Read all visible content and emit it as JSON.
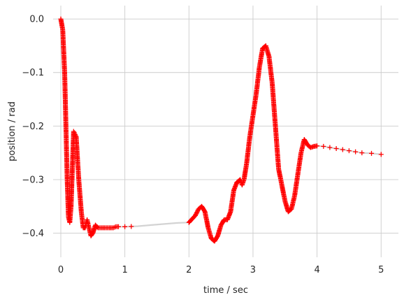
{
  "chart_data": {
    "type": "scatter",
    "title": "",
    "xlabel": "time / sec",
    "ylabel": "position / rad",
    "xlim": [
      -0.12,
      5.27
    ],
    "ylim": [
      -0.445,
      0.025
    ],
    "xticks": [
      0,
      1,
      2,
      3,
      4,
      5
    ],
    "yticks": [
      0.0,
      -0.1,
      -0.2,
      -0.3,
      -0.4
    ],
    "xtick_labels": [
      "0",
      "1",
      "2",
      "3",
      "4",
      "5"
    ],
    "ytick_labels": [
      "0.0",
      "−0.1",
      "−0.2",
      "−0.3",
      "−0.4"
    ],
    "grid": true,
    "legend": "none",
    "series": [
      {
        "marker": "+",
        "color": "#ff0000",
        "line_color": "#d3d3d3",
        "x": [
          0.0,
          0.03,
          0.06,
          0.08,
          0.1,
          0.12,
          0.14,
          0.16,
          0.18,
          0.2,
          0.24,
          0.28,
          0.32,
          0.35,
          0.38,
          0.41,
          0.44,
          0.47,
          0.5,
          0.54,
          0.58,
          0.62,
          0.66,
          0.7,
          0.74,
          0.78,
          0.82,
          0.86,
          0.9,
          0.95,
          1.0,
          1.2,
          1.4,
          1.6,
          1.8,
          2.0,
          2.1,
          2.15,
          2.2,
          2.25,
          2.3,
          2.35,
          2.4,
          2.45,
          2.5,
          2.55,
          2.6,
          2.65,
          2.7,
          2.75,
          2.8,
          2.83,
          2.86,
          2.9,
          2.95,
          3.0,
          3.05,
          3.1,
          3.15,
          3.2,
          3.25,
          3.3,
          3.35,
          3.4,
          3.45,
          3.5,
          3.55,
          3.6,
          3.65,
          3.7,
          3.75,
          3.8,
          3.85,
          3.9,
          3.95,
          4.0,
          4.1,
          4.2,
          4.3,
          4.4,
          4.5,
          4.6,
          4.7,
          4.85,
          5.0
        ],
        "y": [
          0.0,
          -0.02,
          -0.1,
          -0.2,
          -0.3,
          -0.37,
          -0.38,
          -0.35,
          -0.28,
          -0.21,
          -0.22,
          -0.3,
          -0.36,
          -0.39,
          -0.39,
          -0.375,
          -0.39,
          -0.405,
          -0.4,
          -0.385,
          -0.39,
          -0.39,
          -0.39,
          -0.39,
          -0.39,
          -0.39,
          -0.39,
          -0.388,
          -0.388,
          -0.388,
          -0.388,
          -0.387,
          -0.385,
          -0.383,
          -0.381,
          -0.38,
          -0.367,
          -0.355,
          -0.35,
          -0.36,
          -0.39,
          -0.41,
          -0.415,
          -0.405,
          -0.385,
          -0.375,
          -0.375,
          -0.36,
          -0.32,
          -0.305,
          -0.3,
          -0.31,
          -0.3,
          -0.27,
          -0.22,
          -0.18,
          -0.14,
          -0.09,
          -0.055,
          -0.05,
          -0.07,
          -0.12,
          -0.2,
          -0.28,
          -0.31,
          -0.34,
          -0.36,
          -0.355,
          -0.33,
          -0.29,
          -0.25,
          -0.225,
          -0.235,
          -0.24,
          -0.238,
          -0.237,
          -0.238,
          -0.24,
          -0.242,
          -0.244,
          -0.246,
          -0.248,
          -0.25,
          -0.251,
          -0.253
        ]
      }
    ]
  }
}
